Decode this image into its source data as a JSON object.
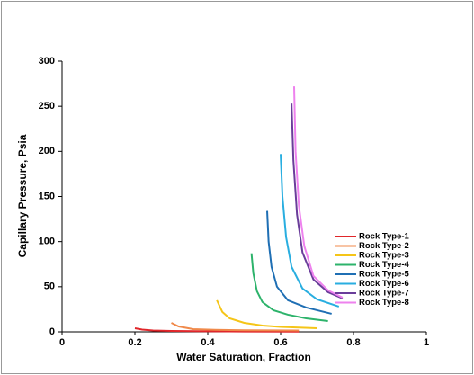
{
  "chart_data": {
    "type": "line",
    "xlabel": "Water Saturation, Fraction",
    "ylabel": "Capillary Pressure, Psia",
    "xlim": [
      0,
      1
    ],
    "xticks": [
      0,
      0.2,
      0.4,
      0.6,
      0.8,
      1
    ],
    "ylim": [
      0,
      300
    ],
    "yticks": [
      0,
      50,
      100,
      150,
      200,
      250,
      300
    ],
    "grid": false,
    "legend": "right",
    "series": [
      {
        "name": "Rock Type-1",
        "color": "#e0262a",
        "x": [
          0.2,
          0.22,
          0.25,
          0.3,
          0.4,
          0.5,
          0.65
        ],
        "values": [
          4,
          2.5,
          1.5,
          1,
          0.6,
          0.4,
          0.3
        ]
      },
      {
        "name": "Rock Type-2",
        "color": "#f08a4b",
        "x": [
          0.3,
          0.32,
          0.36,
          0.42,
          0.5,
          0.65
        ],
        "values": [
          10,
          6,
          3,
          2.2,
          1.8,
          1.5
        ]
      },
      {
        "name": "Rock Type-3",
        "color": "#f5c518",
        "x": [
          0.425,
          0.44,
          0.46,
          0.5,
          0.55,
          0.6,
          0.7
        ],
        "values": [
          35,
          22,
          15,
          10,
          7,
          5.5,
          4
        ]
      },
      {
        "name": "Rock Type-4",
        "color": "#2db36b",
        "x": [
          0.52,
          0.525,
          0.535,
          0.55,
          0.58,
          0.62,
          0.67,
          0.73
        ],
        "values": [
          87,
          65,
          45,
          33,
          24,
          19,
          15,
          12
        ]
      },
      {
        "name": "Rock Type-5",
        "color": "#1f6fb4",
        "x": [
          0.563,
          0.567,
          0.575,
          0.59,
          0.62,
          0.67,
          0.74
        ],
        "values": [
          134,
          100,
          72,
          50,
          35,
          27,
          20
        ]
      },
      {
        "name": "Rock Type-6",
        "color": "#29aee0",
        "x": [
          0.6,
          0.605,
          0.615,
          0.63,
          0.66,
          0.7,
          0.76
        ],
        "values": [
          197,
          150,
          105,
          72,
          48,
          36,
          28
        ]
      },
      {
        "name": "Rock Type-7",
        "color": "#6a3d9a",
        "x": [
          0.63,
          0.635,
          0.645,
          0.66,
          0.69,
          0.73,
          0.77
        ],
        "values": [
          253,
          190,
          130,
          88,
          58,
          44,
          37
        ]
      },
      {
        "name": "Rock Type-8",
        "color": "#ee82ee",
        "x": [
          0.637,
          0.641,
          0.65,
          0.665,
          0.69,
          0.73,
          0.77
        ],
        "values": [
          272,
          200,
          140,
          95,
          62,
          46,
          38
        ]
      }
    ]
  }
}
